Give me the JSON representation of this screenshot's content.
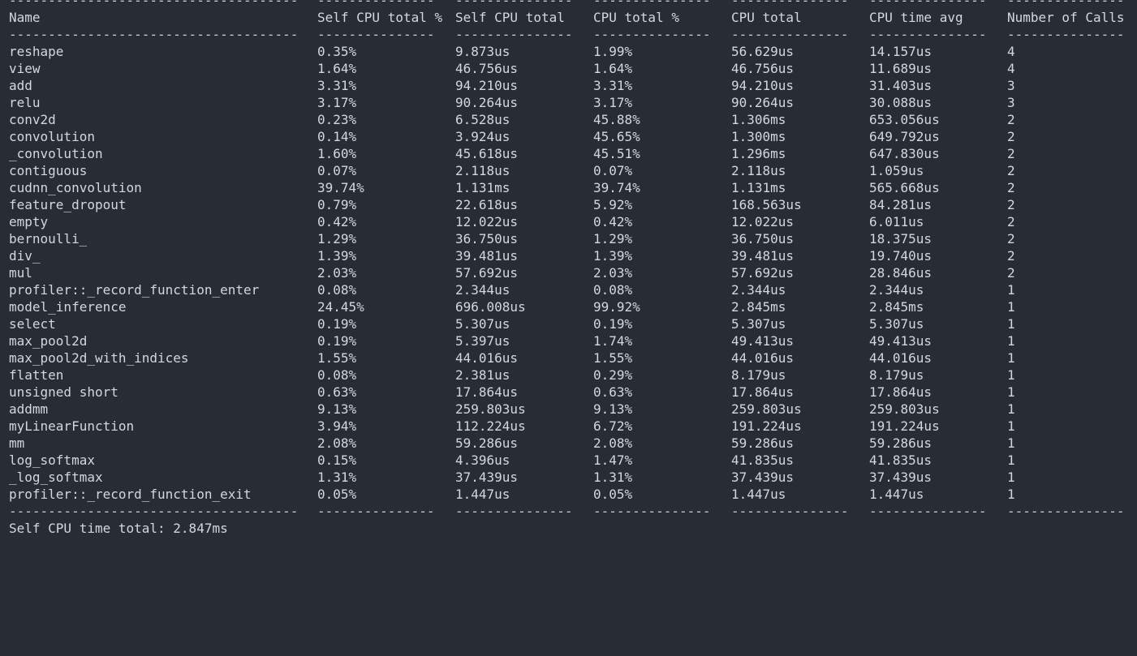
{
  "headers": [
    "Name",
    "Self CPU total %",
    "Self CPU total",
    "CPU total %",
    "CPU total",
    "CPU time avg",
    "Number of Calls"
  ],
  "separators": [
    "-------------------------------------",
    "---------------",
    "---------------",
    "---------------",
    "---------------",
    "---------------",
    "---------------"
  ],
  "rows": [
    [
      "reshape",
      "0.35%",
      "9.873us",
      "1.99%",
      "56.629us",
      "14.157us",
      "4"
    ],
    [
      "view",
      "1.64%",
      "46.756us",
      "1.64%",
      "46.756us",
      "11.689us",
      "4"
    ],
    [
      "add",
      "3.31%",
      "94.210us",
      "3.31%",
      "94.210us",
      "31.403us",
      "3"
    ],
    [
      "relu",
      "3.17%",
      "90.264us",
      "3.17%",
      "90.264us",
      "30.088us",
      "3"
    ],
    [
      "conv2d",
      "0.23%",
      "6.528us",
      "45.88%",
      "1.306ms",
      "653.056us",
      "2"
    ],
    [
      "convolution",
      "0.14%",
      "3.924us",
      "45.65%",
      "1.300ms",
      "649.792us",
      "2"
    ],
    [
      "_convolution",
      "1.60%",
      "45.618us",
      "45.51%",
      "1.296ms",
      "647.830us",
      "2"
    ],
    [
      "contiguous",
      "0.07%",
      "2.118us",
      "0.07%",
      "2.118us",
      "1.059us",
      "2"
    ],
    [
      "cudnn_convolution",
      "39.74%",
      "1.131ms",
      "39.74%",
      "1.131ms",
      "565.668us",
      "2"
    ],
    [
      "feature_dropout",
      "0.79%",
      "22.618us",
      "5.92%",
      "168.563us",
      "84.281us",
      "2"
    ],
    [
      "empty",
      "0.42%",
      "12.022us",
      "0.42%",
      "12.022us",
      "6.011us",
      "2"
    ],
    [
      "bernoulli_",
      "1.29%",
      "36.750us",
      "1.29%",
      "36.750us",
      "18.375us",
      "2"
    ],
    [
      "div_",
      "1.39%",
      "39.481us",
      "1.39%",
      "39.481us",
      "19.740us",
      "2"
    ],
    [
      "mul",
      "2.03%",
      "57.692us",
      "2.03%",
      "57.692us",
      "28.846us",
      "2"
    ],
    [
      "profiler::_record_function_enter",
      "0.08%",
      "2.344us",
      "0.08%",
      "2.344us",
      "2.344us",
      "1"
    ],
    [
      "model_inference",
      "24.45%",
      "696.008us",
      "99.92%",
      "2.845ms",
      "2.845ms",
      "1"
    ],
    [
      "select",
      "0.19%",
      "5.307us",
      "0.19%",
      "5.307us",
      "5.307us",
      "1"
    ],
    [
      "max_pool2d",
      "0.19%",
      "5.397us",
      "1.74%",
      "49.413us",
      "49.413us",
      "1"
    ],
    [
      "max_pool2d_with_indices",
      "1.55%",
      "44.016us",
      "1.55%",
      "44.016us",
      "44.016us",
      "1"
    ],
    [
      "flatten",
      "0.08%",
      "2.381us",
      "0.29%",
      "8.179us",
      "8.179us",
      "1"
    ],
    [
      "unsigned short",
      "0.63%",
      "17.864us",
      "0.63%",
      "17.864us",
      "17.864us",
      "1"
    ],
    [
      "addmm",
      "9.13%",
      "259.803us",
      "9.13%",
      "259.803us",
      "259.803us",
      "1"
    ],
    [
      "myLinearFunction",
      "3.94%",
      "112.224us",
      "6.72%",
      "191.224us",
      "191.224us",
      "1"
    ],
    [
      "mm",
      "2.08%",
      "59.286us",
      "2.08%",
      "59.286us",
      "59.286us",
      "1"
    ],
    [
      "log_softmax",
      "0.15%",
      "4.396us",
      "1.47%",
      "41.835us",
      "41.835us",
      "1"
    ],
    [
      "_log_softmax",
      "1.31%",
      "37.439us",
      "1.31%",
      "37.439us",
      "37.439us",
      "1"
    ],
    [
      "profiler::_record_function_exit",
      "0.05%",
      "1.447us",
      "0.05%",
      "1.447us",
      "1.447us",
      "1"
    ]
  ],
  "footer": "Self CPU time total: 2.847ms",
  "colors": {
    "background": "#282c34",
    "text": "#d4d7dd"
  }
}
